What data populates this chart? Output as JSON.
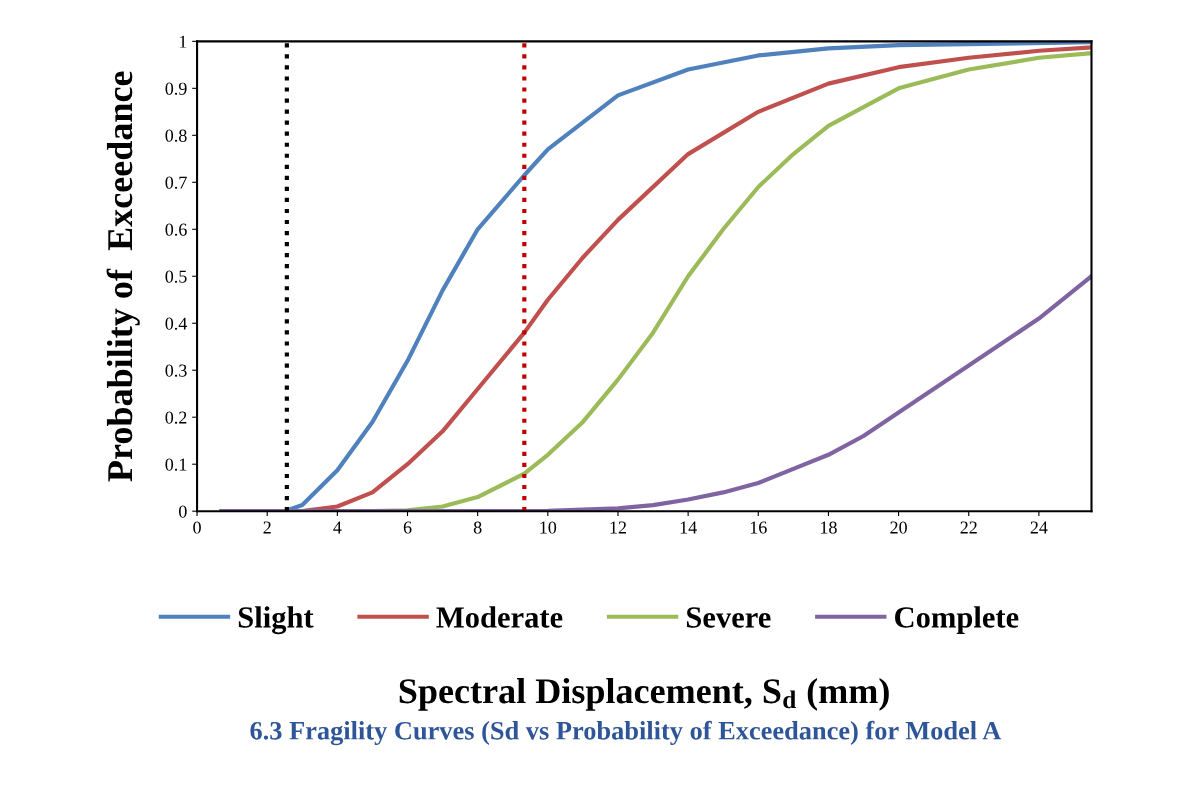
{
  "chart_data": {
    "type": "line",
    "ylabel": "Probability of  Exceedance",
    "xlabel": "Spectral Displacement, S$_{d}$ (mm)",
    "annotations": [
      "6.3 Fragility Curves (Sd vs Probability of Exceedance) for Model A"
    ],
    "series": [
      {
        "name": "Slight",
        "color": "#4f81bd",
        "x": [
          0.7,
          2.5,
          3,
          4,
          5,
          6,
          7,
          8,
          9.33,
          10,
          12,
          14,
          16,
          18,
          20,
          25.5
        ],
        "values": [
          0,
          0,
          0.013,
          0.087,
          0.19,
          0.32,
          0.47,
          0.6,
          0.715,
          0.77,
          0.885,
          0.94,
          0.97,
          0.985,
          0.992,
          0.998
        ]
      },
      {
        "name": "Moderate",
        "color": "#c0504d",
        "x": [
          0.7,
          3,
          4,
          5,
          6,
          7,
          8,
          9.33,
          10,
          11,
          12,
          14,
          16,
          18,
          20,
          22,
          24,
          25.5
        ],
        "values": [
          0,
          0,
          0.01,
          0.04,
          0.1,
          0.17,
          0.26,
          0.38,
          0.45,
          0.54,
          0.62,
          0.76,
          0.85,
          0.91,
          0.945,
          0.965,
          0.98,
          0.987
        ]
      },
      {
        "name": "Severe",
        "color": "#9bbb59",
        "x": [
          0.7,
          5,
          6,
          7,
          8,
          9.33,
          10,
          11,
          12,
          13,
          14,
          15,
          16,
          17,
          18,
          20,
          22,
          24,
          25.5
        ],
        "values": [
          0,
          0,
          0.002,
          0.01,
          0.03,
          0.08,
          0.12,
          0.19,
          0.28,
          0.38,
          0.5,
          0.6,
          0.69,
          0.76,
          0.82,
          0.9,
          0.94,
          0.965,
          0.975
        ]
      },
      {
        "name": "Complete",
        "color": "#8064a2",
        "x": [
          0.7,
          8,
          10,
          12,
          13,
          14,
          15,
          16,
          17,
          18,
          19,
          20,
          21,
          22,
          23,
          24,
          25.5
        ],
        "values": [
          0,
          0,
          0.001,
          0.006,
          0.013,
          0.025,
          0.04,
          0.06,
          0.09,
          0.12,
          0.16,
          0.21,
          0.26,
          0.31,
          0.36,
          0.41,
          0.5
        ]
      }
    ],
    "xlim": [
      0,
      25.5
    ],
    "ylim": [
      0,
      1
    ],
    "xticks": [
      0,
      2,
      4,
      6,
      8,
      10,
      12,
      14,
      16,
      18,
      20,
      22,
      24
    ],
    "yticks": [
      0,
      0.1,
      0.2,
      0.3,
      0.4,
      0.5,
      0.6,
      0.7,
      0.8,
      0.9,
      1
    ],
    "ref_lines": [
      {
        "axis": "x",
        "value": 2.56,
        "color": "#000000",
        "line_style": "dotted"
      },
      {
        "axis": "x",
        "value": 9.33,
        "color": "#c00000",
        "line_style": "dotted"
      }
    ],
    "legend": "bottom",
    "grid": false,
    "marker": "none",
    "line_style": "solid"
  }
}
